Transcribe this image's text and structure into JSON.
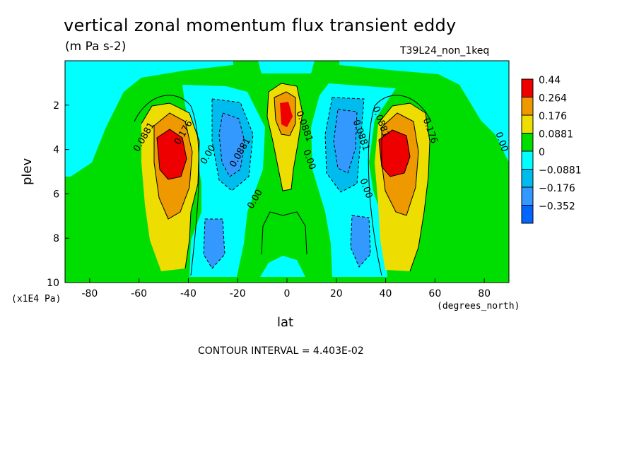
{
  "title": "vertical zonal momentum flux transient eddy",
  "units": "(m Pa s-2)",
  "run_label": "T39L24_non_1keq",
  "contour_interval_text": "CONTOUR INTERVAL = 4.403E-02",
  "chart_data": {
    "type": "heatmap",
    "xlabel": "lat",
    "ylabel": "plev",
    "x_units": "(degrees_north)",
    "y_units": "(x1E4 Pa)",
    "xlim": [
      -90,
      90
    ],
    "ylim": [
      10,
      0
    ],
    "x_ticks": [
      -80,
      -60,
      -40,
      -20,
      0,
      20,
      40,
      60,
      80
    ],
    "y_ticks": [
      2,
      4,
      6,
      8,
      10
    ],
    "legend_position": "right",
    "levels": [
      "0.44",
      "0.264",
      "0.176",
      "0.0881",
      "0",
      "−0.0881",
      "−0.176",
      "−0.352"
    ],
    "level_colors": [
      "#ee0000",
      "#ee9900",
      "#eedd00",
      "#00dd00",
      "#00ffff",
      "#00bbee",
      "#3399ff",
      "#0066ff"
    ],
    "contour_labels": [
      {
        "text": "0.0881",
        "lat": -57,
        "plev": 3.5
      },
      {
        "text": "0.176",
        "lat": -41,
        "plev": 3.3
      },
      {
        "text": "0.00",
        "lat": -31,
        "plev": 4.3
      },
      {
        "text": "0.0881",
        "lat": -18,
        "plev": 4.2
      },
      {
        "text": "0.00",
        "lat": -12,
        "plev": 6.3
      },
      {
        "text": "0.0881",
        "lat": 6,
        "plev": 3
      },
      {
        "text": "0.00",
        "lat": 8,
        "plev": 4.5
      },
      {
        "text": "0.0881",
        "lat": 29,
        "plev": 3.4
      },
      {
        "text": "0.00",
        "lat": 31,
        "plev": 5.8
      },
      {
        "text": "0.0881",
        "lat": 37,
        "plev": 2.8
      },
      {
        "text": "0.176",
        "lat": 57,
        "plev": 3.2
      },
      {
        "text": "0.00",
        "lat": 86,
        "plev": 3.7
      }
    ],
    "features": [
      {
        "name": "southern positive maximum",
        "lat": -45,
        "plev": 4.2,
        "value_class": "0.44"
      },
      {
        "name": "northern positive maximum",
        "lat": 44,
        "plev": 4.2,
        "value_class": "0.44"
      },
      {
        "name": "equatorial positive maximum",
        "lat": 0,
        "plev": 2.6,
        "value_class": "0.44"
      },
      {
        "name": "southern negative minimum upper",
        "lat": -21,
        "plev": 3.8,
        "value_class": "-0.176"
      },
      {
        "name": "southern negative minimum lower",
        "lat": -24,
        "plev": 8.5,
        "value_class": "-0.176"
      },
      {
        "name": "northern negative minimum upper",
        "lat": 22,
        "plev": 3.6,
        "value_class": "-0.176"
      },
      {
        "name": "northern negative minimum lower",
        "lat": 27,
        "plev": 8.4,
        "value_class": "-0.176"
      }
    ]
  }
}
